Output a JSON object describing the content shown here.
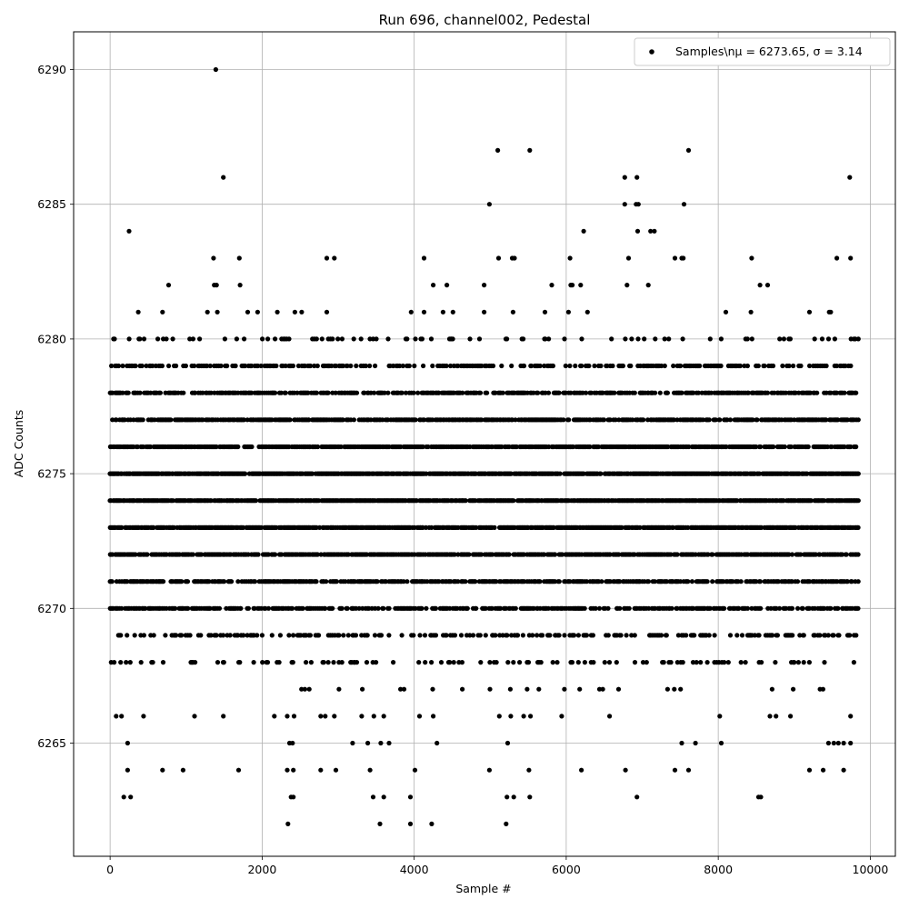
{
  "chart_data": {
    "type": "scatter",
    "title": "Run 696, channel002, Pedestal",
    "xlabel": "Sample #",
    "ylabel": "ADC Counts",
    "xlim": [
      -480,
      10330
    ],
    "ylim": [
      6260.8,
      6291.4
    ],
    "x_ticks": [
      0,
      2000,
      4000,
      6000,
      8000,
      10000
    ],
    "x_tick_labels": [
      "0",
      "2000",
      "4000",
      "6000",
      "8000",
      "10000"
    ],
    "y_ticks": [
      6265,
      6270,
      6275,
      6280,
      6285,
      6290
    ],
    "y_tick_labels": [
      "6265",
      "6270",
      "6275",
      "6280",
      "6285",
      "6290"
    ],
    "grid": true,
    "legend_position": "top-right",
    "series": [
      {
        "name": "Samples\\nμ = 6273.65, σ = 3.14",
        "color": "#000000",
        "marker": "circle",
        "x_range": [
          0,
          9850
        ],
        "y_levels": [
          6262,
          6263,
          6264,
          6265,
          6266,
          6267,
          6268,
          6269,
          6270,
          6271,
          6272,
          6273,
          6274,
          6275,
          6276,
          6277,
          6278,
          6279,
          6280,
          6281,
          6282,
          6283,
          6284,
          6285,
          6286,
          6287,
          6290
        ],
        "dense_levels": [
          6267,
          6268,
          6269,
          6270,
          6271,
          6272,
          6273,
          6274,
          6275,
          6276,
          6277,
          6278,
          6279,
          6280
        ],
        "points": [
          [
            1390,
            6290
          ],
          [
            1490,
            6286
          ],
          [
            6770,
            6286
          ],
          [
            6930,
            6286
          ],
          [
            9730,
            6286
          ],
          [
            5100,
            6287
          ],
          [
            5520,
            6287
          ],
          [
            7610,
            6287
          ],
          [
            4990,
            6285
          ],
          [
            6770,
            6285
          ],
          [
            6920,
            6285
          ],
          [
            6950,
            6285
          ],
          [
            7550,
            6285
          ],
          [
            250,
            6284
          ],
          [
            6230,
            6284
          ],
          [
            6940,
            6284
          ],
          [
            7110,
            6284
          ],
          [
            7160,
            6284
          ],
          [
            1360,
            6283
          ],
          [
            1700,
            6283
          ],
          [
            2850,
            6283
          ],
          [
            2950,
            6283
          ],
          [
            4130,
            6283
          ],
          [
            5110,
            6283
          ],
          [
            5290,
            6283
          ],
          [
            5320,
            6283
          ],
          [
            6050,
            6283
          ],
          [
            6820,
            6283
          ],
          [
            7430,
            6283
          ],
          [
            7520,
            6283
          ],
          [
            7540,
            6283
          ],
          [
            8440,
            6283
          ],
          [
            9560,
            6283
          ],
          [
            9740,
            6283
          ],
          [
            770,
            6282
          ],
          [
            1370,
            6282
          ],
          [
            1400,
            6282
          ],
          [
            1710,
            6282
          ],
          [
            4250,
            6282
          ],
          [
            4430,
            6282
          ],
          [
            4920,
            6282
          ],
          [
            5810,
            6282
          ],
          [
            6060,
            6282
          ],
          [
            6080,
            6282
          ],
          [
            6190,
            6282
          ],
          [
            6800,
            6282
          ],
          [
            7080,
            6282
          ],
          [
            8550,
            6282
          ],
          [
            8650,
            6282
          ],
          [
            370,
            6281
          ],
          [
            690,
            6281
          ],
          [
            1280,
            6281
          ],
          [
            1410,
            6281
          ],
          [
            1810,
            6281
          ],
          [
            1940,
            6281
          ],
          [
            2200,
            6281
          ],
          [
            2430,
            6281
          ],
          [
            2520,
            6281
          ],
          [
            2850,
            6281
          ],
          [
            3960,
            6281
          ],
          [
            4130,
            6281
          ],
          [
            4380,
            6281
          ],
          [
            4510,
            6281
          ],
          [
            4920,
            6281
          ],
          [
            5300,
            6281
          ],
          [
            5720,
            6281
          ],
          [
            6030,
            6281
          ],
          [
            6280,
            6281
          ],
          [
            8100,
            6281
          ],
          [
            8430,
            6281
          ],
          [
            9200,
            6281
          ],
          [
            9460,
            6281
          ],
          [
            9480,
            6281
          ],
          [
            2340,
            6262
          ],
          [
            3950,
            6262
          ],
          [
            3550,
            6262
          ],
          [
            4230,
            6262
          ],
          [
            5210,
            6262
          ],
          [
            180,
            6263
          ],
          [
            270,
            6263
          ],
          [
            2380,
            6263
          ],
          [
            2410,
            6263
          ],
          [
            3460,
            6263
          ],
          [
            3600,
            6263
          ],
          [
            3950,
            6263
          ],
          [
            5220,
            6263
          ],
          [
            5310,
            6263
          ],
          [
            5520,
            6263
          ],
          [
            6930,
            6263
          ],
          [
            8530,
            6263
          ],
          [
            8560,
            6263
          ],
          [
            230,
            6264
          ],
          [
            690,
            6264
          ],
          [
            960,
            6264
          ],
          [
            1690,
            6264
          ],
          [
            2330,
            6264
          ],
          [
            2410,
            6264
          ],
          [
            2770,
            6264
          ],
          [
            2970,
            6264
          ],
          [
            3420,
            6264
          ],
          [
            4010,
            6264
          ],
          [
            4990,
            6264
          ],
          [
            5510,
            6264
          ],
          [
            6200,
            6264
          ],
          [
            6780,
            6264
          ],
          [
            7430,
            6264
          ],
          [
            7610,
            6264
          ],
          [
            9200,
            6264
          ],
          [
            9380,
            6264
          ],
          [
            9650,
            6264
          ],
          [
            230,
            6265
          ],
          [
            2360,
            6265
          ],
          [
            2400,
            6265
          ],
          [
            3190,
            6265
          ],
          [
            3390,
            6265
          ],
          [
            3560,
            6265
          ],
          [
            3670,
            6265
          ],
          [
            4300,
            6265
          ],
          [
            5230,
            6265
          ],
          [
            7520,
            6265
          ],
          [
            7700,
            6265
          ],
          [
            8040,
            6265
          ],
          [
            9450,
            6265
          ],
          [
            9520,
            6265
          ],
          [
            9580,
            6265
          ],
          [
            9650,
            6265
          ],
          [
            9740,
            6265
          ],
          [
            80,
            6266
          ],
          [
            150,
            6266
          ],
          [
            440,
            6266
          ],
          [
            1110,
            6266
          ],
          [
            1490,
            6266
          ],
          [
            2160,
            6266
          ],
          [
            2330,
            6266
          ],
          [
            2420,
            6266
          ],
          [
            2770,
            6266
          ],
          [
            2830,
            6266
          ],
          [
            2950,
            6266
          ],
          [
            3310,
            6266
          ],
          [
            3470,
            6266
          ],
          [
            3600,
            6266
          ],
          [
            4070,
            6266
          ],
          [
            4250,
            6266
          ],
          [
            5120,
            6266
          ],
          [
            5270,
            6266
          ],
          [
            5440,
            6266
          ],
          [
            5530,
            6266
          ],
          [
            5940,
            6266
          ],
          [
            6570,
            6266
          ],
          [
            8020,
            6266
          ],
          [
            8680,
            6266
          ],
          [
            8760,
            6266
          ],
          [
            8950,
            6266
          ],
          [
            9740,
            6266
          ]
        ]
      }
    ]
  }
}
